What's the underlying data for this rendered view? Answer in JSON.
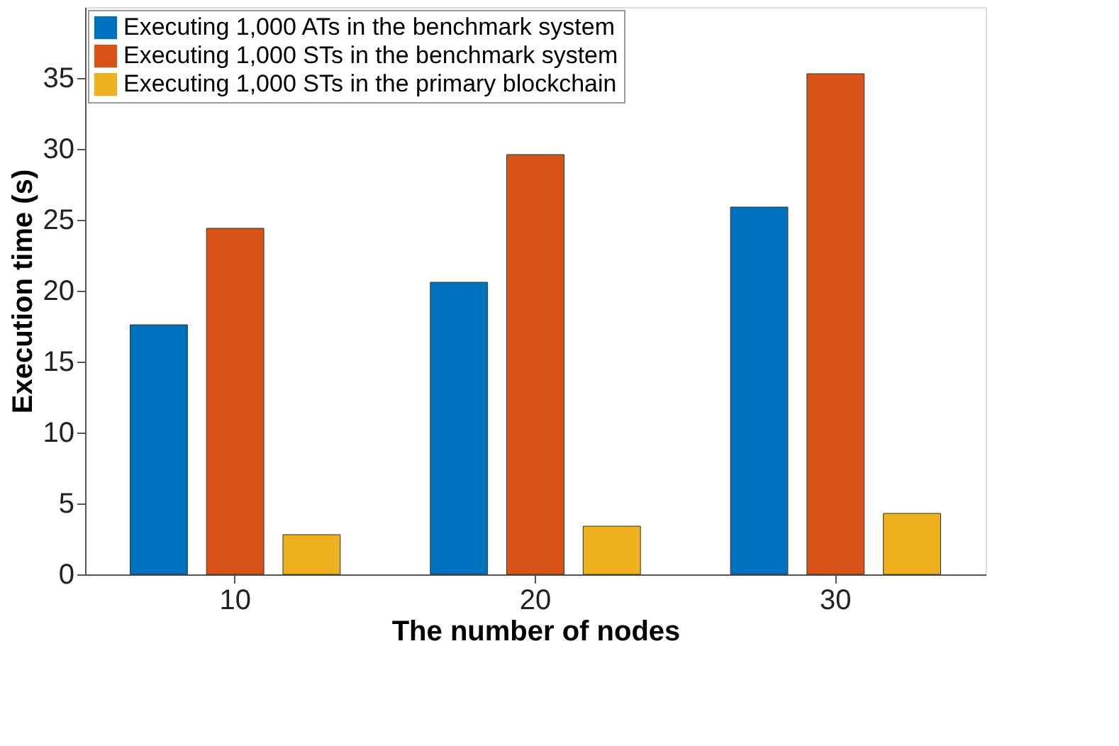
{
  "chart_data": {
    "type": "bar",
    "xlabel": "The number of nodes",
    "ylabel": "Execution time (s)",
    "categories": [
      "10",
      "20",
      "30"
    ],
    "series": [
      {
        "name": "Executing 1,000 ATs in the benchmark system",
        "color": "#0072bd",
        "values": [
          17.6,
          20.6,
          25.9
        ]
      },
      {
        "name": "Executing 1,000 STs in the benchmark system",
        "color": "#d95319",
        "values": [
          24.4,
          29.6,
          35.3
        ]
      },
      {
        "name": "Executing 1,000 STs in the primary blockchain",
        "color": "#edb120",
        "values": [
          2.8,
          3.4,
          4.3
        ]
      }
    ],
    "ylim": [
      0,
      40
    ],
    "yticks": [
      0,
      5,
      10,
      15,
      20,
      25,
      30,
      35
    ],
    "legend": "top left",
    "grid": false
  }
}
